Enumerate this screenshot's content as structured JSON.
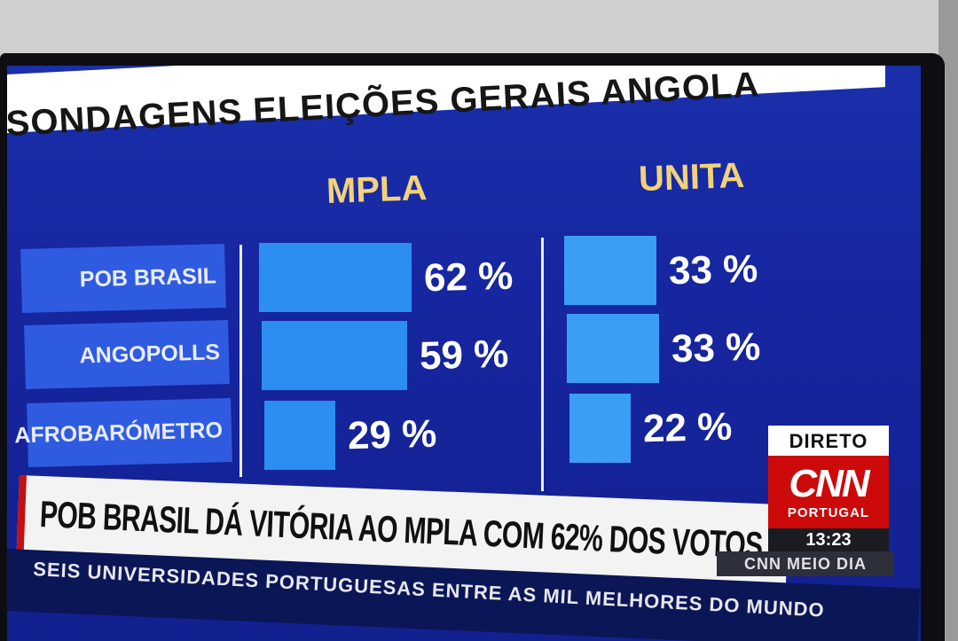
{
  "title": "SONDAGENS ELEIÇÕES GERAIS ANGOLA",
  "headline": "POB BRASIL DÁ VITÓRIA AO MPLA COM 62% DOS VOTOS",
  "ticker": "SEIS UNIVERSIDADES PORTUGUESAS ENTRE AS MIL MELHORES DO MUNDO",
  "badge": {
    "live_label": "DIRETO",
    "logo": "CNN",
    "sub_label": "PORTUGAL",
    "time": "13:23",
    "program": "CNN MEIO DIA"
  },
  "colors": {
    "background": "#1626a0",
    "bar_mpla": "#2c8ef0",
    "bar_unita": "#3a9ef5",
    "party_heading": "#f2d27a",
    "cnn_red": "#cc0a0a"
  },
  "chart_data": {
    "type": "bar",
    "orientation": "horizontal",
    "title": "SONDAGENS ELEIÇÕES GERAIS ANGOLA",
    "categories": [
      "POB BRASIL",
      "ANGOPOLLS",
      "AFROBARÓMETRO"
    ],
    "series": [
      {
        "name": "MPLA",
        "values": [
          62,
          59,
          29
        ],
        "labels": [
          "62 %",
          "59 %",
          "29 %"
        ]
      },
      {
        "name": "UNITA",
        "values": [
          33,
          33,
          22
        ],
        "labels": [
          "33 %",
          "33 %",
          "22 %"
        ]
      }
    ],
    "unit": "%",
    "grid": false
  }
}
